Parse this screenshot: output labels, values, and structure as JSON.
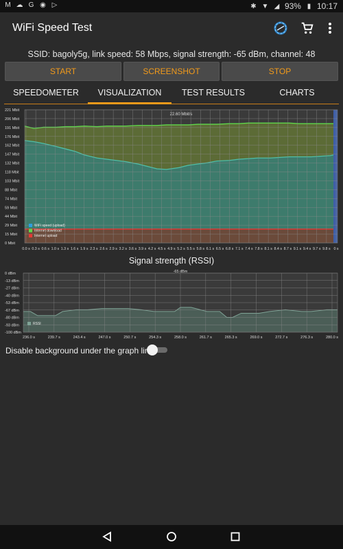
{
  "status_bar": {
    "notif_icons": [
      "gmail-icon",
      "cloud-icon",
      "google-icon",
      "chrome-icon",
      "play-icon"
    ],
    "battery": "93%",
    "time": "10:17"
  },
  "app": {
    "title": "WiFi Speed Test",
    "actions": [
      "wifi-scan-icon",
      "cart-icon",
      "more-vert-icon"
    ]
  },
  "ssid_info": "SSID: bagoly5g, link speed: 58 Mbps, signal strength: -65 dBm, channel: 48",
  "buttons": {
    "start": "START",
    "screenshot": "SCREENSHOT",
    "stop": "STOP"
  },
  "tabs": [
    "SPEEDOMETER",
    "VISUALIZATION",
    "TEST RESULTS",
    "CHARTS"
  ],
  "active_tab": "VISUALIZATION",
  "speed_chart_header": "22.60 Mbit/s",
  "rssi_title": "Signal strength (RSSI)",
  "rssi_chart_header": "-65 dBm",
  "toggle": {
    "label": "Disable background under the graph line",
    "on": false
  },
  "colors": {
    "accent": "#f29a1a",
    "wifi": "#2f9ee0",
    "download": "#5fd94a",
    "upload": "#e53935"
  },
  "chart_data": [
    {
      "type": "area",
      "y_ticks": [
        "221 Mbit",
        "206 Mbit",
        "191 Mbit",
        "176 Mbit",
        "162 Mbit",
        "147 Mbit",
        "132 Mbit",
        "118 Mbit",
        "103 Mbit",
        "88 Mbit",
        "74 Mbit",
        "59 Mbit",
        "44 Mbit",
        "29 Mbit",
        "15 Mbit",
        "0 Mbit"
      ],
      "ylim": [
        0,
        221
      ],
      "x_ticks": [
        "0.0 s",
        "0.3 s",
        "0.6 s",
        "1.0 s",
        "1.3 s",
        "1.6 s",
        "1.9 s",
        "2.3 s",
        "2.6 s",
        "2.9 s",
        "3.2 s",
        "3.6 s",
        "3.9 s",
        "4.2 s",
        "4.5 s",
        "4.9 s",
        "5.2 s",
        "5.5 s",
        "5.8 s",
        "6.1 s",
        "6.5 s",
        "6.8 s",
        "7.1 s",
        "7.4 s",
        "7.8 s",
        "8.1 s",
        "8.4 s",
        "8.7 s",
        "9.1 s",
        "9.4 s",
        "9.7 s",
        "9.8 s",
        "0 s"
      ],
      "x": [
        0,
        0.3,
        0.6,
        1.0,
        1.3,
        1.6,
        1.9,
        2.3,
        2.6,
        2.9,
        3.2,
        3.6,
        3.9,
        4.2,
        4.5,
        4.9,
        5.2,
        5.5,
        5.8,
        6.1,
        6.5,
        6.8,
        7.1,
        7.4,
        7.8,
        8.1,
        8.4,
        8.7,
        9.1,
        9.4,
        9.7,
        9.8
      ],
      "xlim": [
        0,
        9.8
      ],
      "series": [
        {
          "name": "WiFi speed (upload)",
          "values": [
            170,
            168,
            165,
            160,
            156,
            152,
            146,
            141,
            139,
            137,
            135,
            131,
            127,
            123,
            122,
            125,
            129,
            131,
            133,
            136,
            137,
            139,
            140,
            141,
            141,
            142,
            143,
            143,
            143,
            144,
            145,
            146
          ]
        },
        {
          "name": "Internet download",
          "values": [
            194,
            190,
            192,
            192,
            193,
            193,
            194,
            193,
            194,
            194,
            194,
            195,
            195,
            195,
            196,
            196,
            196,
            197,
            197,
            197,
            198,
            198,
            199,
            199,
            199,
            199,
            199,
            198,
            198,
            198,
            198,
            198
          ]
        },
        {
          "name": "Internet upload",
          "values": [
            23,
            23,
            23,
            23,
            23,
            23,
            23,
            23,
            23,
            23,
            23,
            23,
            23,
            23,
            23,
            23,
            23,
            23,
            23,
            23,
            23,
            23,
            23,
            23,
            23,
            23,
            23,
            23,
            23,
            23,
            23,
            23
          ]
        }
      ],
      "grid": true,
      "legend": "bottom-left"
    },
    {
      "type": "line",
      "title": "Signal strength (RSSI)",
      "y_ticks": [
        "0 dBm",
        "-13 dBm",
        "-27 dBm",
        "-40 dBm",
        "-53 dBm",
        "-67 dBm",
        "-80 dBm",
        "-93 dBm",
        "-100 dBm"
      ],
      "ylim": [
        -100,
        0
      ],
      "x_ticks": [
        "236.0 s",
        "239.7 s",
        "243.4 s",
        "247.0 s",
        "250.7 s",
        "254.3 s",
        "258.0 s",
        "261.7 s",
        "265.3 s",
        "269.0 s",
        "272.7 s",
        "276.3 s",
        "280.0 s"
      ],
      "x": [
        236.0,
        237.0,
        238.0,
        239.7,
        240.5,
        241.5,
        243.4,
        245.0,
        247.0,
        248.5,
        250.7,
        252.5,
        254.3,
        256.0,
        257.2,
        258.0,
        259.5,
        261.7,
        263.5,
        264.5,
        265.3,
        266.5,
        269.0,
        270.5,
        272.7,
        275.0,
        276.3,
        278.5,
        280.0
      ],
      "xlim": [
        236.0,
        280.0
      ],
      "series": [
        {
          "name": "RSSI",
          "values": [
            -65,
            -65,
            -72,
            -72,
            -72,
            -65,
            -62,
            -62,
            -60,
            -60,
            -60,
            -62,
            -65,
            -65,
            -65,
            -58,
            -58,
            -65,
            -65,
            -75,
            -75,
            -68,
            -68,
            -65,
            -62,
            -65,
            -65,
            -62,
            -62
          ]
        }
      ],
      "grid": true,
      "legend": "bottom-left"
    }
  ]
}
